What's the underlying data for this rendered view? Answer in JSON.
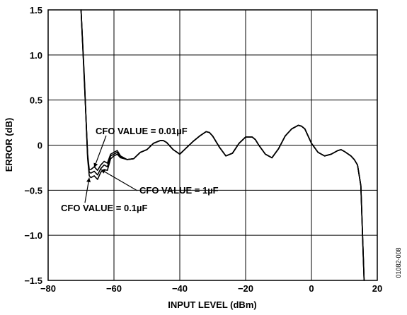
{
  "chart_data": {
    "type": "line",
    "xlabel": "INPUT LEVEL (dBm)",
    "ylabel": "ERROR (dB)",
    "xlim": [
      -80,
      20
    ],
    "ylim": [
      -1.5,
      1.5
    ],
    "grid": true,
    "x_ticks": [
      -80,
      -60,
      -40,
      -20,
      0,
      20
    ],
    "x_tick_labels": [
      "−80",
      "−60",
      "−40",
      "−20",
      "0",
      "20"
    ],
    "y_ticks": [
      -1.5,
      -1.0,
      -0.5,
      0,
      0.5,
      1.0,
      1.5
    ],
    "y_tick_labels": [
      "−1.5",
      "−1.0",
      "−0.5",
      "0",
      "0.5",
      "1.0",
      "1.5"
    ],
    "series": [
      {
        "name": "CFO VALUE = 0.01µF",
        "x": [
          -70,
          -69,
          -68,
          -67.5,
          -67,
          -66,
          -65,
          -64,
          -63,
          -62,
          -61,
          -60,
          -59,
          -58,
          -56,
          -54,
          -52,
          -50,
          -48,
          -46,
          -45,
          -44,
          -42,
          -40,
          -38,
          -36,
          -34,
          -32,
          -31,
          -30,
          -28,
          -26,
          -24,
          -22,
          -20,
          -18,
          -17,
          -16,
          -14,
          -12,
          -10,
          -8,
          -6,
          -4,
          -3,
          -2,
          0,
          2,
          4,
          6,
          8,
          9,
          10,
          12,
          13,
          14,
          15,
          16
        ],
        "y": [
          1.5,
          0.7,
          -0.1,
          -0.27,
          -0.27,
          -0.24,
          -0.28,
          -0.22,
          -0.18,
          -0.2,
          -0.1,
          -0.08,
          -0.06,
          -0.12,
          -0.16,
          -0.15,
          -0.08,
          -0.05,
          0.02,
          0.05,
          0.05,
          0.03,
          -0.05,
          -0.1,
          -0.03,
          0.04,
          0.1,
          0.15,
          0.14,
          0.1,
          -0.02,
          -0.12,
          -0.09,
          0.02,
          0.09,
          0.09,
          0.06,
          0.0,
          -0.1,
          -0.14,
          -0.04,
          0.1,
          0.18,
          0.22,
          0.21,
          0.18,
          0.02,
          -0.08,
          -0.12,
          -0.1,
          -0.06,
          -0.05,
          -0.07,
          -0.12,
          -0.16,
          -0.22,
          -0.45,
          -1.5
        ]
      },
      {
        "name": "CFO VALUE = 1µF",
        "x": [
          -70,
          -69,
          -68,
          -67.5,
          -67,
          -66,
          -65,
          -64,
          -63,
          -62,
          -61,
          -60,
          -59,
          -58,
          -56,
          -54,
          -52,
          -50,
          -48,
          -46,
          -45,
          -44,
          -42,
          -40,
          -38,
          -36,
          -34,
          -32,
          -31,
          -30,
          -28,
          -26,
          -24,
          -22,
          -20,
          -18,
          -17,
          -16,
          -14,
          -12,
          -10,
          -8,
          -6,
          -4,
          -3,
          -2,
          0,
          2,
          4,
          6,
          8,
          9,
          10,
          12,
          13,
          14,
          15,
          16
        ],
        "y": [
          1.5,
          0.72,
          -0.12,
          -0.3,
          -0.31,
          -0.29,
          -0.33,
          -0.26,
          -0.22,
          -0.24,
          -0.12,
          -0.1,
          -0.08,
          -0.13,
          -0.16,
          -0.15,
          -0.08,
          -0.05,
          0.02,
          0.05,
          0.05,
          0.03,
          -0.05,
          -0.1,
          -0.03,
          0.04,
          0.1,
          0.15,
          0.14,
          0.1,
          -0.02,
          -0.12,
          -0.09,
          0.02,
          0.09,
          0.09,
          0.06,
          0.0,
          -0.1,
          -0.14,
          -0.04,
          0.1,
          0.18,
          0.22,
          0.21,
          0.18,
          0.02,
          -0.08,
          -0.12,
          -0.1,
          -0.06,
          -0.05,
          -0.07,
          -0.12,
          -0.16,
          -0.22,
          -0.45,
          -1.5
        ]
      },
      {
        "name": "CFO VALUE = 0.1µF",
        "x": [
          -70,
          -69,
          -68,
          -67.5,
          -67,
          -66,
          -65,
          -64,
          -63,
          -62,
          -61,
          -60,
          -59,
          -58,
          -56,
          -54,
          -52,
          -50,
          -48,
          -46,
          -45,
          -44,
          -42,
          -40,
          -38,
          -36,
          -34,
          -32,
          -31,
          -30,
          -28,
          -26,
          -24,
          -22,
          -20,
          -18,
          -17,
          -16,
          -14,
          -12,
          -10,
          -8,
          -6,
          -4,
          -3,
          -2,
          0,
          2,
          4,
          6,
          8,
          9,
          10,
          12,
          13,
          14,
          15,
          16
        ],
        "y": [
          1.5,
          0.75,
          -0.15,
          -0.34,
          -0.36,
          -0.34,
          -0.38,
          -0.3,
          -0.27,
          -0.28,
          -0.15,
          -0.12,
          -0.1,
          -0.14,
          -0.16,
          -0.15,
          -0.08,
          -0.05,
          0.02,
          0.05,
          0.05,
          0.03,
          -0.05,
          -0.1,
          -0.03,
          0.04,
          0.1,
          0.15,
          0.14,
          0.1,
          -0.02,
          -0.12,
          -0.09,
          0.02,
          0.09,
          0.09,
          0.06,
          0.0,
          -0.1,
          -0.14,
          -0.04,
          0.1,
          0.18,
          0.22,
          0.21,
          0.18,
          0.02,
          -0.08,
          -0.12,
          -0.1,
          -0.06,
          -0.05,
          -0.07,
          -0.12,
          -0.16,
          -0.22,
          -0.45,
          -1.5
        ]
      }
    ],
    "annotations": [
      {
        "text": "CFO VALUE = 0.01µF",
        "target_x": -66,
        "target_y": -0.25
      },
      {
        "text": "CFO VALUE = 1µF",
        "target_x": -64,
        "target_y": -0.27
      },
      {
        "text": "CFO VALUE = 0.1µF",
        "target_x": -67.5,
        "target_y": -0.36
      }
    ],
    "figure_id": "01082-008"
  }
}
